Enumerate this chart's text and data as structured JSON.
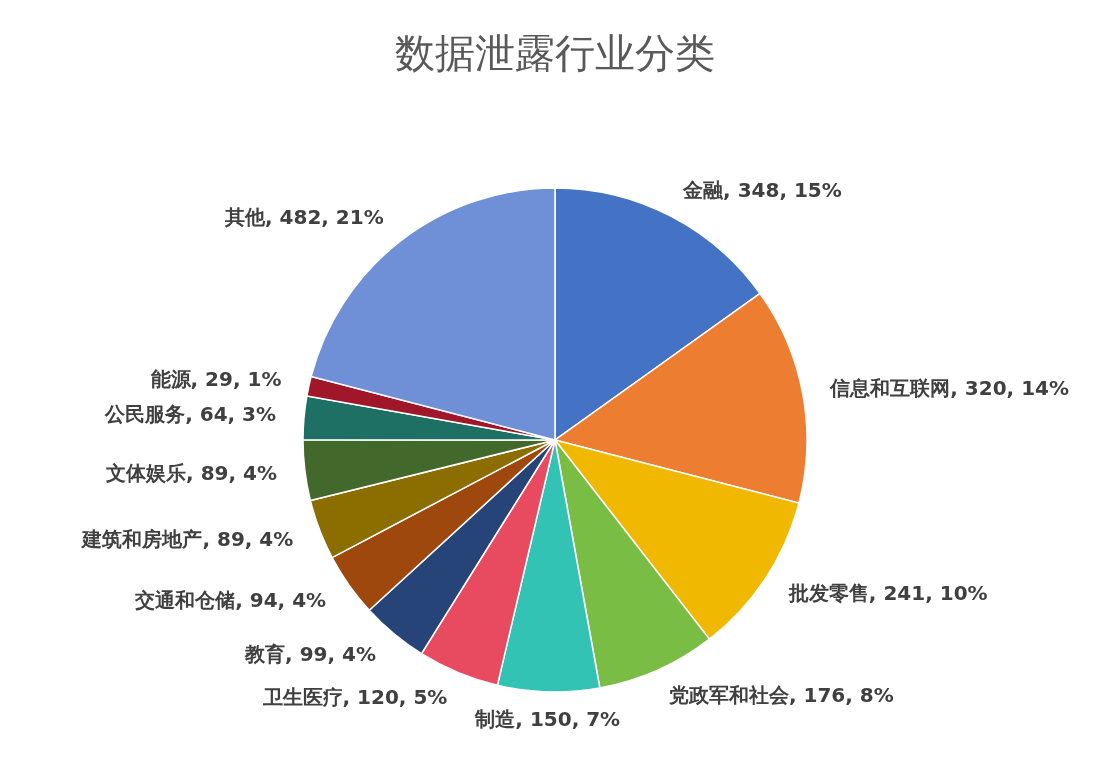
{
  "chart_data": {
    "type": "pie",
    "title": "数据泄露行业分类",
    "categories": [
      "金融",
      "信息和互联网",
      "批发零售",
      "党政军和社会",
      "制造",
      "卫生医疗",
      "教育",
      "交通和仓储",
      "建筑和房地产",
      "文体娱乐",
      "公民服务",
      "能源",
      "其他"
    ],
    "values": [
      348,
      320,
      241,
      176,
      150,
      120,
      99,
      94,
      89,
      89,
      64,
      29,
      482
    ],
    "value_labels": [
      "348, 15%",
      "320, 14%",
      "241, 10%",
      "176, 8%",
      "150, 7%",
      "120, 5%",
      "99, 4%",
      "94, 4%",
      "89, 4%",
      "89, 4%",
      "64, 3%",
      "29, 1%",
      "482, 21%"
    ],
    "colors": [
      "#4472c4",
      "#ed7d31",
      "#f0b800",
      "#7abd44",
      "#32c3b5",
      "#e84b60",
      "#264478",
      "#9e480e",
      "#8c6d00",
      "#43682b",
      "#1e7065",
      "#a0172a",
      "#6f8fd6"
    ]
  }
}
